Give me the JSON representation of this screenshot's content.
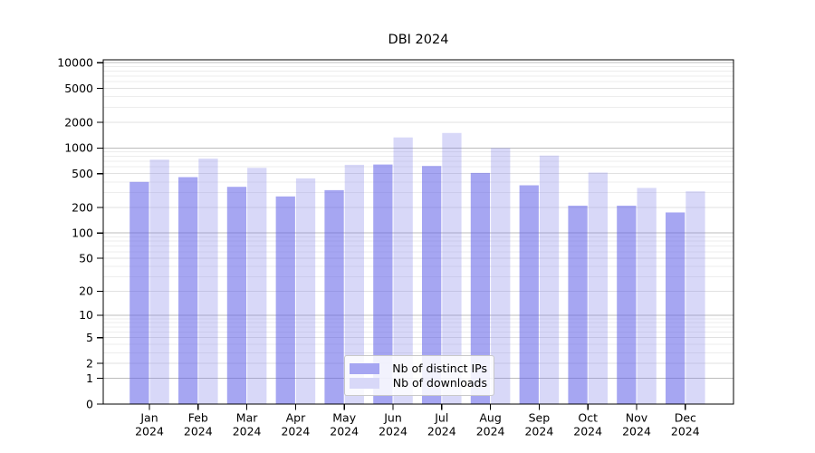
{
  "chart_data": {
    "type": "bar",
    "title": "DBI 2024",
    "categories": [
      "Jan 2024",
      "Feb 2024",
      "Mar 2024",
      "Apr 2024",
      "May 2024",
      "Jun 2024",
      "Jul 2024",
      "Aug 2024",
      "Sep 2024",
      "Oct 2024",
      "Nov 2024",
      "Dec 2024"
    ],
    "series": [
      {
        "name": "Nb of distinct IPs",
        "color": "#a6a6f2",
        "values": [
          400,
          455,
          350,
          270,
          320,
          640,
          615,
          510,
          365,
          210,
          210,
          175
        ]
      },
      {
        "name": "Nb of downloads",
        "color": "#d8d8f8",
        "values": [
          730,
          750,
          585,
          440,
          635,
          1330,
          1500,
          1000,
          815,
          515,
          340,
          310
        ]
      }
    ],
    "xlabel": "",
    "ylabel": "",
    "yscale": "log1p",
    "yticks": [
      0,
      1,
      2,
      5,
      10,
      20,
      50,
      100,
      200,
      500,
      1000,
      2000,
      5000,
      10000
    ],
    "ylim": [
      0,
      11000
    ],
    "grid": "on",
    "grid_major_color": "#bcbcbc",
    "grid_mid_color": "#e1e1e1",
    "grid_minor_color": "#ededed",
    "axis_color": "#000000",
    "legend_position": "lower-center-inside"
  }
}
